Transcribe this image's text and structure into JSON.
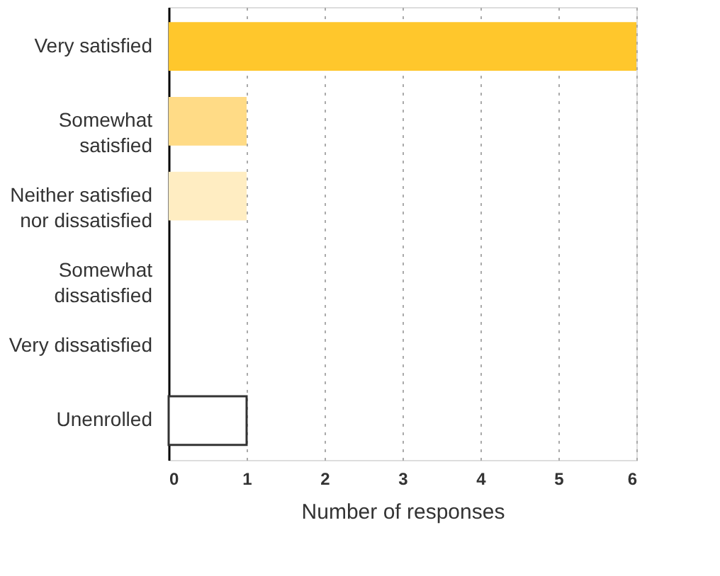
{
  "chart_data": {
    "type": "bar",
    "orientation": "horizontal",
    "xlabel": "Number of responses",
    "categories": [
      "Very satisfied",
      "Somewhat\nsatisfied",
      "Neither satisfied\nnor dissatisfied",
      "Somewhat\ndissatisfied",
      "Very dissatisfied",
      "Unenrolled"
    ],
    "values": [
      6,
      1,
      1,
      0,
      0,
      1
    ],
    "colors": [
      "#ffc72c",
      "#ffdb86",
      "#ffedc2",
      "#ffd966",
      "#ffd966",
      "#ffffff"
    ],
    "xlim": [
      0,
      6
    ],
    "xticks": [
      0,
      1,
      2,
      3,
      4,
      5,
      6
    ],
    "grid": "x"
  }
}
